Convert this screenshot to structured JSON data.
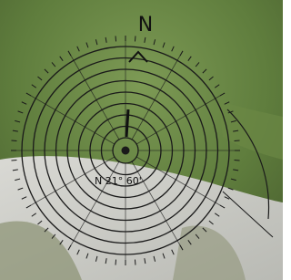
{
  "compass": {
    "north_label": "N",
    "bearing_label": "N 21° 60'"
  }
}
